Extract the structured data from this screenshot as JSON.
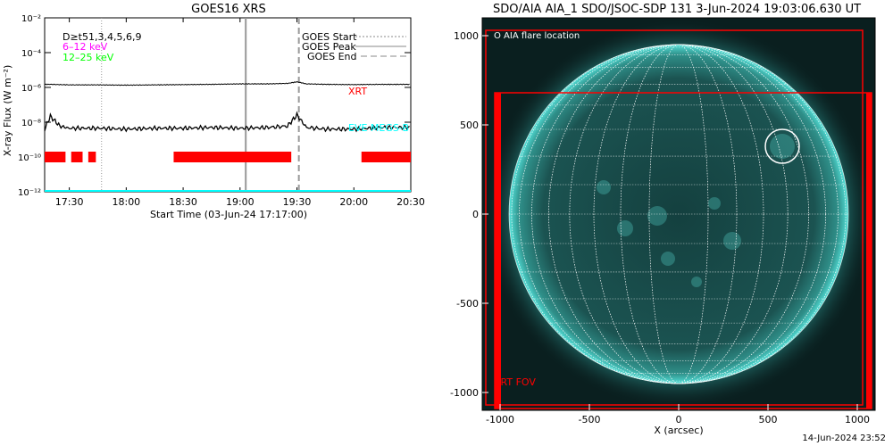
{
  "left_title": "GOES16 XRS",
  "right_title": "SDO/AIA AIA_1 SDO/JSOC-SDP 131  3-Jun-2024 19:03:06.630 UT",
  "footer_date": "14-Jun-2024 23:52",
  "colors": {
    "goes_long": "#000000",
    "goes_short": "#000000",
    "xrt": "#ff0000",
    "eve": "#00ffff",
    "label_6_12": "#ff00ff",
    "label_12_25": "#00ff00",
    "sun": "#0f3b3b",
    "sun_limb": "#3fd6d0",
    "background": "#0a1f1f"
  },
  "chart_data": [
    {
      "type": "line",
      "title": "GOES16 XRS",
      "xlabel": "Start Time (03-Jun-24 17:17:00)",
      "ylabel": "X-ray Flux (W m⁻²)",
      "y_scale": "log",
      "ylim": [
        1e-12,
        0.01
      ],
      "xlim": [
        "17:17",
        "20:30"
      ],
      "x_ticks": [
        "17:30",
        "18:00",
        "18:30",
        "19:00",
        "19:30",
        "20:00",
        "20:30"
      ],
      "y_ticks": [
        "10⁻¹²",
        "10⁻¹⁰",
        "10⁻⁸",
        "10⁻⁶",
        "10⁻⁴",
        "10⁻²"
      ],
      "legend_left": [
        "D≥t51,3,4,5,6,9",
        "6–12 keV",
        "12–25 keV"
      ],
      "legend_right": [
        "GOES Start",
        "GOES Peak",
        "GOES End"
      ],
      "annotations": [
        "XRT",
        "EVE MEGS-B"
      ],
      "events": {
        "goes_start": "17:47",
        "goes_peak": "19:03",
        "goes_end": "19:31"
      },
      "series": [
        {
          "x": [
            "17:17",
            "17:20",
            "17:30",
            "17:45",
            "18:00",
            "18:15",
            "18:30",
            "18:45",
            "19:00",
            "19:15",
            "19:25",
            "19:30",
            "19:35",
            "19:45",
            "20:00",
            "20:15",
            "20:30"
          ],
          "values": [
            1.5e-06,
            1.5e-06,
            1.4e-06,
            1.4e-06,
            1.35e-06,
            1.4e-06,
            1.45e-06,
            1.5e-06,
            1.6e-06,
            1.6e-06,
            1.7e-06,
            2.1e-06,
            1.6e-06,
            1.5e-06,
            1.45e-06,
            1.5e-06,
            1.5e-06
          ]
        },
        {
          "x": [
            "17:17",
            "17:20",
            "17:25",
            "17:30",
            "17:45",
            "18:00",
            "18:15",
            "18:30",
            "18:45",
            "19:00",
            "19:15",
            "19:25",
            "19:30",
            "19:35",
            "19:45",
            "20:00",
            "20:15",
            "20:30"
          ],
          "values": [
            4e-09,
            2.2e-08,
            6e-09,
            4.5e-09,
            4.5e-09,
            4e-09,
            4.5e-09,
            4.5e-09,
            5e-09,
            4.5e-09,
            5e-09,
            6e-09,
            2.6e-08,
            5e-09,
            4e-09,
            4e-09,
            5e-09,
            5e-09
          ]
        }
      ],
      "xrt_coverage": [
        [
          "17:17",
          "17:28"
        ],
        [
          "17:31",
          "17:37"
        ],
        [
          "17:40",
          "17:44"
        ],
        [
          "18:25",
          "19:27"
        ],
        [
          "20:04",
          "20:30"
        ]
      ],
      "xrt_level": 1e-10,
      "eve_level": 1e-12
    },
    {
      "type": "image",
      "title": "SDO/AIA AIA_1 SDO/JSOC-SDP 131  3-Jun-2024 19:03:06.630 UT",
      "xlabel": "X (arcsec)",
      "ylabel": "",
      "xlim": [
        -1100,
        1100
      ],
      "ylim": [
        -1100,
        1100
      ],
      "x_ticks": [
        "-1000",
        "-500",
        "0",
        "500",
        "1000"
      ],
      "y_ticks": [
        "1000",
        "500",
        "0",
        "-500",
        "-1000"
      ],
      "legend": "O AIA flare location",
      "fov_label": "XRT FOV",
      "solar_radius_arcsec": 950,
      "flare_location": {
        "x": 580,
        "y": 380,
        "r": 95
      },
      "fov_outer": {
        "x0": -1080,
        "x1": 1030,
        "y0": -1070,
        "y1": 1030
      },
      "fov_inner": {
        "x0": -1030,
        "x1": 1080,
        "y0": -1090,
        "y1": 680
      }
    }
  ]
}
